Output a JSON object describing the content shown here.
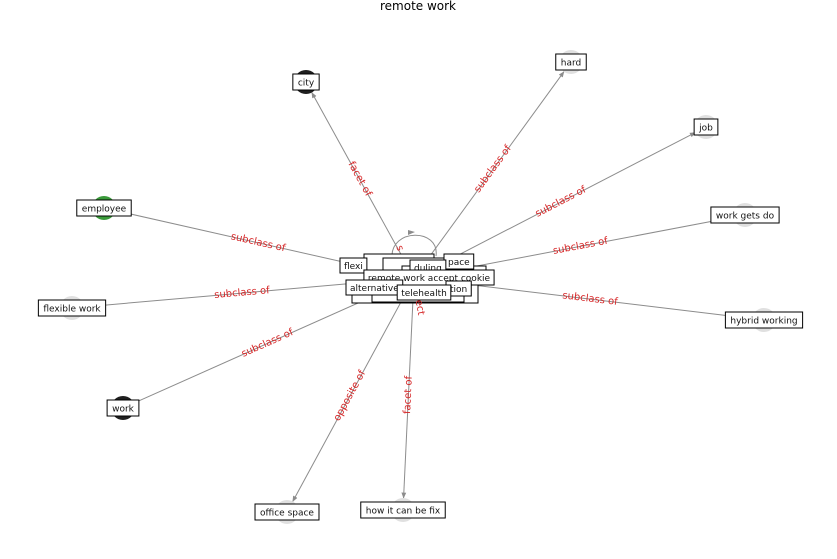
{
  "title": "remote work",
  "colors": {
    "edge": "#8c8c8c",
    "edge_label": "#d62728",
    "node_default": "#e0e0e0",
    "node_dark": "#1f1f1f",
    "node_green": "#3a9a3a"
  },
  "center_labels": [
    "flexi",
    "pace",
    "duling",
    "remote work accept cookie",
    "alternative",
    "tion",
    "telehealth"
  ],
  "center_edge_labels": [
    "s",
    "ect"
  ],
  "nodes": [
    {
      "id": "city",
      "label": "city",
      "color": "dark"
    },
    {
      "id": "hard",
      "label": "hard",
      "color": "default"
    },
    {
      "id": "job",
      "label": "job",
      "color": "default"
    },
    {
      "id": "work_gets_do",
      "label": "work gets do",
      "color": "default"
    },
    {
      "id": "hybrid_working",
      "label": "hybrid working",
      "color": "default"
    },
    {
      "id": "how_it_can_be_fix",
      "label": "how it can be fix",
      "color": "default"
    },
    {
      "id": "office_space",
      "label": "office space",
      "color": "default"
    },
    {
      "id": "work",
      "label": "work",
      "color": "dark"
    },
    {
      "id": "flexible_work",
      "label": "flexible work",
      "color": "default"
    },
    {
      "id": "employee",
      "label": "employee",
      "color": "green"
    }
  ],
  "edges": [
    {
      "target": "city",
      "label": "facet of",
      "arrow": true
    },
    {
      "target": "hard",
      "label": "subclass of",
      "arrow": true
    },
    {
      "target": "job",
      "label": "subclass of",
      "arrow": true
    },
    {
      "target": "work_gets_do",
      "label": "subclass of",
      "arrow": false
    },
    {
      "target": "hybrid_working",
      "label": "subclass of",
      "arrow": false
    },
    {
      "target": "how_it_can_be_fix",
      "label": "facet of",
      "arrow": true
    },
    {
      "target": "office_space",
      "label": "opposite of",
      "arrow": true
    },
    {
      "target": "work",
      "label": "subclass of",
      "arrow": false
    },
    {
      "target": "flexible_work",
      "label": "subclass of",
      "arrow": false
    },
    {
      "target": "employee",
      "label": "subclass of",
      "arrow": false
    }
  ]
}
